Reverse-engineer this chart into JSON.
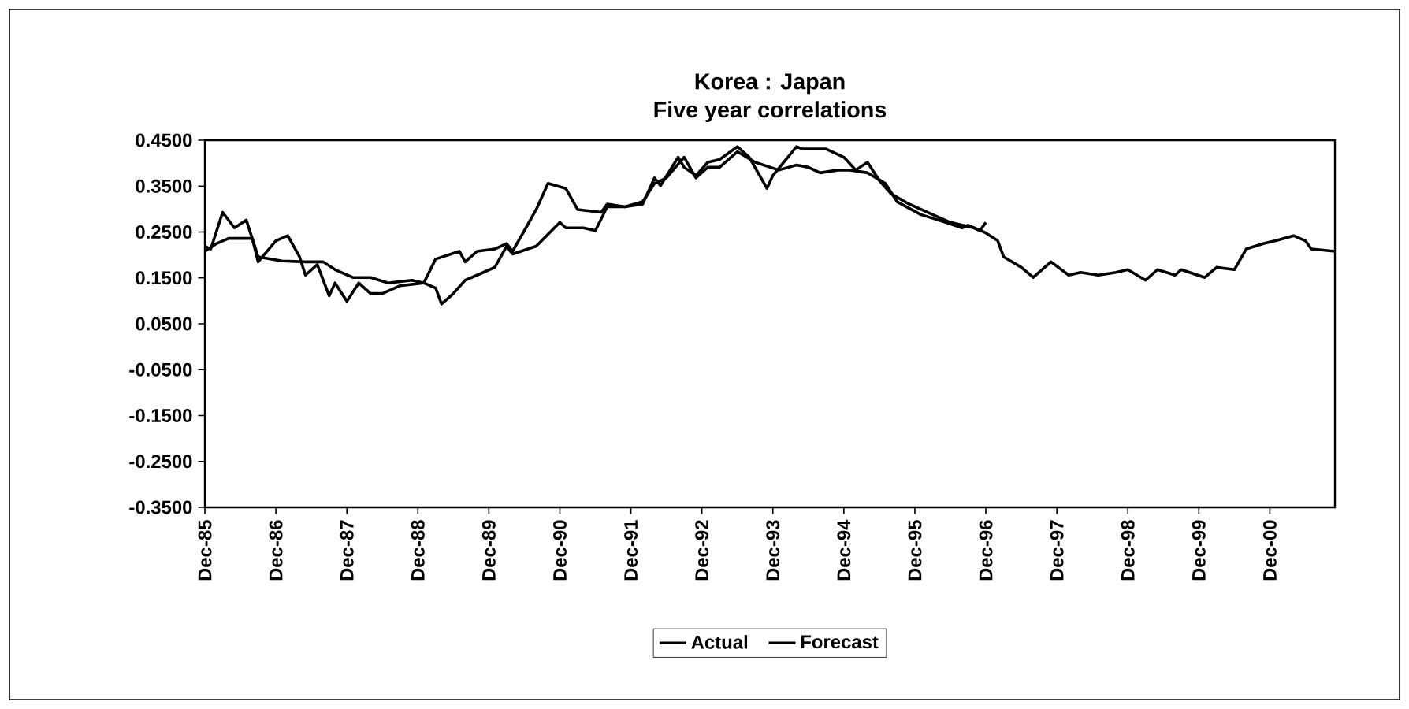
{
  "chart_data": {
    "type": "line",
    "title": "Korea : Japan",
    "subtitle": "Five year correlations",
    "series": [
      {
        "name": "Actual",
        "color": "#000000",
        "x": [
          "1985-12",
          "1986-01",
          "1986-03",
          "1986-05",
          "1986-07",
          "1986-08",
          "1986-09",
          "1986-12",
          "1987-02",
          "1987-04",
          "1987-05",
          "1987-07",
          "1987-09",
          "1987-10",
          "1987-12",
          "1988-02",
          "1988-04",
          "1988-06",
          "1988-09",
          "1989-01",
          "1989-03",
          "1989-07",
          "1989-08",
          "1989-10",
          "1990-01",
          "1990-03",
          "1990-04",
          "1990-06",
          "1990-08",
          "1990-10",
          "1991-01",
          "1991-03",
          "1991-07",
          "1991-08",
          "1991-11",
          "1992-02",
          "1992-04",
          "1992-05",
          "1992-08",
          "1992-09",
          "1992-11",
          "1993-01",
          "1993-03",
          "1993-06",
          "1993-08",
          "1993-11",
          "1993-12",
          "1994-04",
          "1994-05",
          "1994-09",
          "1994-12",
          "1995-02",
          "1995-04",
          "1995-06",
          "1995-08",
          "1995-11",
          "1996-03",
          "1996-06",
          "1996-10",
          "1996-11",
          "1996-12"
        ],
        "values": [
          0.219,
          0.213,
          0.293,
          0.259,
          0.276,
          0.236,
          0.185,
          0.231,
          0.242,
          0.196,
          0.156,
          0.179,
          0.111,
          0.139,
          0.099,
          0.139,
          0.116,
          0.116,
          0.133,
          0.139,
          0.191,
          0.208,
          0.185,
          0.208,
          0.213,
          0.225,
          0.208,
          0.253,
          0.299,
          0.356,
          0.345,
          0.299,
          0.293,
          0.311,
          0.305,
          0.311,
          0.368,
          0.351,
          0.413,
          0.391,
          0.373,
          0.402,
          0.408,
          0.436,
          0.413,
          0.345,
          0.373,
          0.436,
          0.431,
          0.431,
          0.413,
          0.385,
          0.402,
          0.362,
          0.333,
          0.311,
          0.288,
          0.271,
          0.259,
          0.253,
          0.271
        ]
      },
      {
        "name": "Forecast",
        "color": "#000000",
        "x": [
          "1985-12",
          "1986-02",
          "1986-04",
          "1986-08",
          "1986-09",
          "1987-01",
          "1987-05",
          "1987-08",
          "1987-10",
          "1988-01",
          "1988-04",
          "1988-07",
          "1988-11",
          "1989-01",
          "1989-03",
          "1989-04",
          "1989-06",
          "1989-08",
          "1989-10",
          "1990-01",
          "1990-03",
          "1990-04",
          "1990-08",
          "1990-12",
          "1991-01",
          "1991-04",
          "1991-06",
          "1991-08",
          "1991-11",
          "1992-02",
          "1992-04",
          "1992-06",
          "1992-09",
          "1992-11",
          "1993-01",
          "1993-03",
          "1993-06",
          "1993-09",
          "1994-01",
          "1994-04",
          "1994-06",
          "1994-08",
          "1994-11",
          "1995-01",
          "1995-04",
          "1995-07",
          "1995-09",
          "1996-01",
          "1996-04",
          "1996-08",
          "1996-09",
          "1996-12",
          "1997-02",
          "1997-03",
          "1997-06",
          "1997-08",
          "1997-11",
          "1998-02",
          "1998-04",
          "1998-07",
          "1998-10",
          "1998-12",
          "1999-03",
          "1999-05",
          "1999-08",
          "1999-09",
          "2000-01",
          "2000-03",
          "2000-06",
          "2000-08",
          "2000-11",
          "2001-01",
          "2001-04",
          "2001-06",
          "2001-07",
          "2001-11"
        ],
        "values": [
          0.208,
          0.225,
          0.236,
          0.236,
          0.196,
          0.187,
          0.185,
          0.185,
          0.168,
          0.151,
          0.151,
          0.139,
          0.145,
          0.139,
          0.128,
          0.093,
          0.116,
          0.145,
          0.156,
          0.173,
          0.219,
          0.202,
          0.219,
          0.271,
          0.259,
          0.259,
          0.253,
          0.305,
          0.305,
          0.316,
          0.356,
          0.368,
          0.413,
          0.368,
          0.391,
          0.391,
          0.425,
          0.402,
          0.385,
          0.396,
          0.391,
          0.379,
          0.385,
          0.385,
          0.379,
          0.356,
          0.316,
          0.288,
          0.276,
          0.259,
          0.265,
          0.248,
          0.231,
          0.196,
          0.173,
          0.151,
          0.185,
          0.156,
          0.162,
          0.156,
          0.162,
          0.168,
          0.145,
          0.168,
          0.156,
          0.168,
          0.151,
          0.173,
          0.168,
          0.213,
          0.225,
          0.231,
          0.242,
          0.231,
          0.213,
          0.208
        ]
      }
    ],
    "xlim": [
      "1985-12",
      "2001-11"
    ],
    "xticks": [
      {
        "value": "1985-12",
        "label": "Dec-85"
      },
      {
        "value": "1986-12",
        "label": "Dec-86"
      },
      {
        "value": "1987-12",
        "label": "Dec-87"
      },
      {
        "value": "1988-12",
        "label": "Dec-88"
      },
      {
        "value": "1989-12",
        "label": "Dec-89"
      },
      {
        "value": "1990-12",
        "label": "Dec-90"
      },
      {
        "value": "1991-12",
        "label": "Dec-91"
      },
      {
        "value": "1992-12",
        "label": "Dec-92"
      },
      {
        "value": "1993-12",
        "label": "Dec-93"
      },
      {
        "value": "1994-12",
        "label": "Dec-94"
      },
      {
        "value": "1995-12",
        "label": "Dec-95"
      },
      {
        "value": "1996-12",
        "label": "Dec-96"
      },
      {
        "value": "1997-12",
        "label": "Dec-97"
      },
      {
        "value": "1998-12",
        "label": "Dec-98"
      },
      {
        "value": "1999-12",
        "label": "Dec-99"
      },
      {
        "value": "2000-12",
        "label": "Dec-00"
      }
    ],
    "ylim": [
      -0.35,
      0.45
    ],
    "yticks": [
      {
        "value": 0.45,
        "label": "0.4500"
      },
      {
        "value": 0.35,
        "label": "0.3500"
      },
      {
        "value": 0.25,
        "label": "0.2500"
      },
      {
        "value": 0.15,
        "label": "0.1500"
      },
      {
        "value": 0.05,
        "label": "0.0500"
      },
      {
        "value": -0.05,
        "label": "-0.0500"
      },
      {
        "value": -0.15,
        "label": "-0.1500"
      },
      {
        "value": -0.25,
        "label": "-0.2500"
      },
      {
        "value": -0.35,
        "label": "-0.3500"
      }
    ],
    "grid": false,
    "legend": "bottom",
    "line_style": "solid"
  }
}
